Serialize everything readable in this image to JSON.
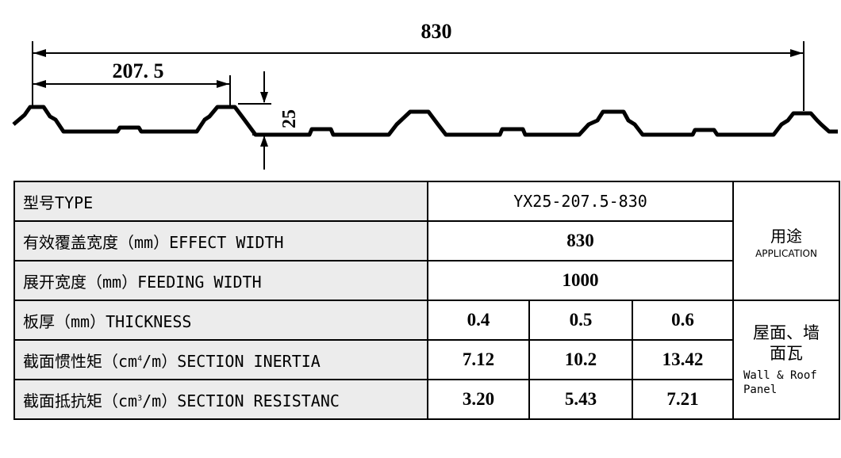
{
  "drawing": {
    "dim_total": "830",
    "dim_pitch": "207. 5",
    "dim_height": "25"
  },
  "table": {
    "type_label": "型号TYPE",
    "type_value": "YX25-207.5-830",
    "effect_label": "有效覆盖宽度（mm）EFFECT WIDTH",
    "effect_value": "830",
    "feeding_label": "展开宽度（mm）FEEDING WIDTH",
    "feeding_value": "1000",
    "application_cn": "用途",
    "application_en": "APPLICATION",
    "thickness_label": "板厚（mm）THICKNESS",
    "thickness_values": [
      "0.4",
      "0.5",
      "0.6"
    ],
    "inertia_label_pre": "截面惯性矩（cm",
    "inertia_sup": "4",
    "inertia_label_post": "/m）SECTION INERTIA",
    "inertia_values": [
      "7.12",
      "10.2",
      "13.42"
    ],
    "resist_label_pre": "截面抵抗矩（cm",
    "resist_sup": "3",
    "resist_label_post": "/m）SECTION RESISTANC",
    "resist_values": [
      "3.20",
      "5.43",
      "7.21"
    ],
    "use_cn_line1": "屋面、墙",
    "use_cn_line2": "面瓦",
    "use_en": "Wall & Roof Panel"
  }
}
